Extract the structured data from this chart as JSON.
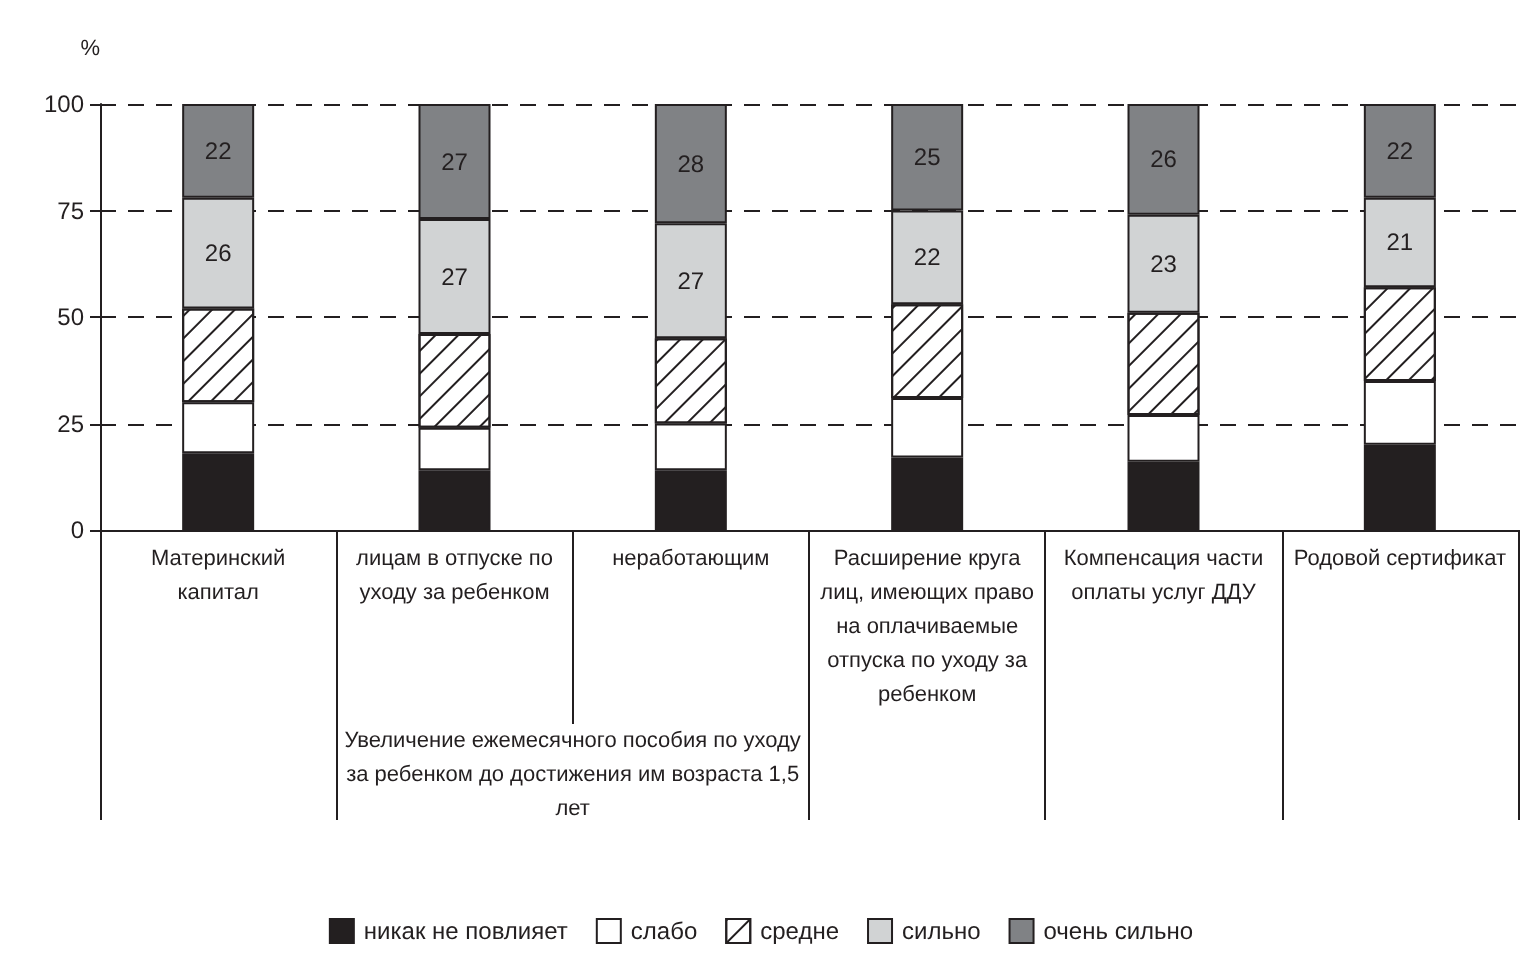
{
  "chart_data": {
    "type": "bar",
    "stacked": true,
    "ylabel": "%",
    "categories": [
      "Материнский капитал",
      "лицам в отпуске по уходу за ребенком",
      "неработающим",
      "Расширение круга лиц, имеющих право на оплачиваемые отпуска по уходу за ребенком",
      "Компенсация части оплаты услуг ДДУ",
      "Родовой сертификат"
    ],
    "series": [
      {
        "name": "никак не повлияет",
        "color": "#231f20",
        "values": [
          18,
          14,
          14,
          17,
          16,
          20
        ]
      },
      {
        "name": "слабо",
        "color": "#ffffff",
        "values": [
          12,
          10,
          11,
          14,
          11,
          15
        ]
      },
      {
        "name": "средне",
        "color": "#ffffff",
        "values": [
          22,
          22,
          20,
          22,
          24,
          22
        ]
      },
      {
        "name": "сильно",
        "color": "#d1d3d4",
        "values": [
          26,
          27,
          27,
          22,
          23,
          21
        ],
        "value_labels": [
          "26",
          "27",
          "27",
          "22",
          "23",
          "21"
        ]
      },
      {
        "name": "очень сильно",
        "color": "#808285",
        "values": [
          22,
          27,
          28,
          25,
          26,
          22
        ],
        "value_labels": [
          "22",
          "27",
          "28",
          "25",
          "26",
          "22"
        ]
      }
    ],
    "ylim": [
      0,
      100
    ],
    "yticks": [
      0,
      25,
      50,
      75,
      100
    ],
    "grid": "y",
    "legend": "bottom",
    "annotations": [
      "Увеличение ежемесячного пособия по уходу за ребенком до достижения им возраста 1,5 лет"
    ]
  }
}
